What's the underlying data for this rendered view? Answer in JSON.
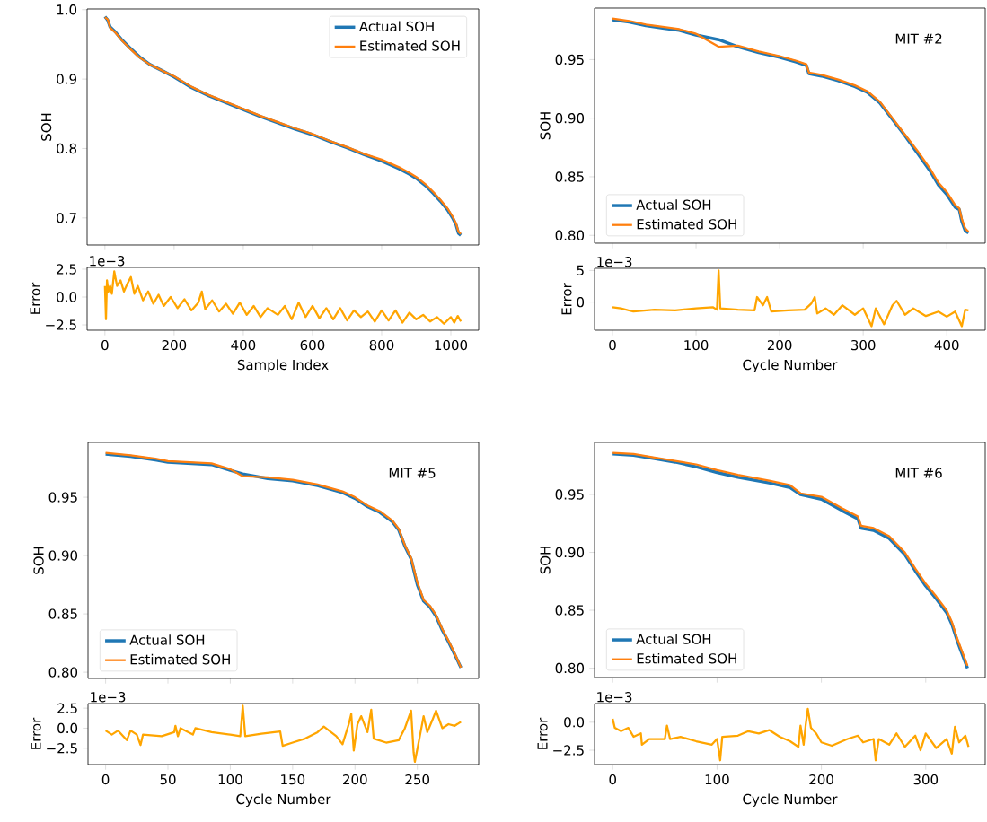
{
  "chart_data": [
    {
      "type": "line",
      "ylabel": "SOH",
      "xlim": [
        -51.5,
        1080.5
      ],
      "ylim": [
        0.661,
        1.001
      ],
      "xticks": [
        0,
        200,
        400,
        600,
        800,
        1000
      ],
      "yticks": [
        {
          "value": 0.7,
          "label": "0.7"
        },
        {
          "value": 0.8,
          "label": "0.8"
        },
        {
          "value": 0.9,
          "label": "0.9"
        },
        {
          "value": 1.0,
          "label": "1.0"
        }
      ],
      "tick_labels": "y",
      "legend": "top right",
      "x": [
        0,
        8,
        15,
        30,
        50,
        70,
        100,
        130,
        170,
        200,
        250,
        300,
        350,
        400,
        450,
        500,
        550,
        600,
        650,
        700,
        750,
        800,
        850,
        880,
        900,
        930,
        950,
        970,
        990,
        1005,
        1015,
        1022,
        1029
      ],
      "series": [
        {
          "name": "Actual SOH",
          "color": "#1f77b4",
          "values": [
            0.99,
            0.985,
            0.975,
            0.968,
            0.956,
            0.946,
            0.932,
            0.921,
            0.911,
            0.903,
            0.888,
            0.876,
            0.866,
            0.856,
            0.846,
            0.837,
            0.828,
            0.82,
            0.81,
            0.801,
            0.791,
            0.782,
            0.771,
            0.763,
            0.757,
            0.745,
            0.735,
            0.724,
            0.712,
            0.7,
            0.69,
            0.678,
            0.675
          ]
        },
        {
          "name": "Estimated SOH",
          "color": "#ff7f0e",
          "values": [
            0.989,
            0.986,
            0.974,
            0.967,
            0.955,
            0.945,
            0.931,
            0.921,
            0.911,
            0.904,
            0.889,
            0.877,
            0.867,
            0.857,
            0.847,
            0.838,
            0.829,
            0.821,
            0.811,
            0.802,
            0.792,
            0.784,
            0.773,
            0.765,
            0.759,
            0.747,
            0.737,
            0.726,
            0.714,
            0.702,
            0.692,
            0.68,
            0.677
          ]
        }
      ]
    },
    {
      "type": "line",
      "xlabel": "Sample Index",
      "ylabel": "Error",
      "annotations": [
        "1e−3"
      ],
      "xlim": [
        -51.5,
        1080.5
      ],
      "ylim": [
        -2.98,
        2.66
      ],
      "xticks": [
        0,
        200,
        400,
        600,
        800,
        1000
      ],
      "yticks": [
        {
          "value": -2.5,
          "label": "−2.5"
        },
        {
          "value": 0.0,
          "label": "0.0"
        },
        {
          "value": 2.5,
          "label": "2.5"
        }
      ],
      "x": [
        0,
        3,
        6,
        10,
        15,
        20,
        27,
        35,
        45,
        55,
        65,
        75,
        85,
        95,
        110,
        125,
        140,
        155,
        170,
        190,
        210,
        230,
        250,
        270,
        280,
        290,
        310,
        330,
        350,
        370,
        390,
        410,
        430,
        450,
        470,
        500,
        520,
        540,
        560,
        580,
        600,
        620,
        640,
        660,
        680,
        700,
        720,
        740,
        760,
        780,
        800,
        820,
        840,
        860,
        880,
        900,
        920,
        940,
        960,
        980,
        1000,
        1010,
        1020,
        1029
      ],
      "series": [
        {
          "color": "#ffa500",
          "values": [
            1.0,
            -2.0,
            1.5,
            0.5,
            1.0,
            0.3,
            2.3,
            1.0,
            1.5,
            0.5,
            1.2,
            1.8,
            0.3,
            1.0,
            -0.3,
            0.5,
            -0.6,
            0.2,
            -0.8,
            0.0,
            -1.0,
            -0.2,
            -1.2,
            -0.5,
            0.5,
            -1.1,
            -0.3,
            -1.3,
            -0.6,
            -1.5,
            -0.5,
            -1.6,
            -0.8,
            -1.8,
            -1.0,
            -1.6,
            -0.8,
            -2.0,
            -0.5,
            -1.8,
            -0.8,
            -1.9,
            -1.0,
            -2.0,
            -1.0,
            -2.1,
            -1.2,
            -1.8,
            -1.3,
            -2.2,
            -1.2,
            -2.1,
            -1.2,
            -2.3,
            -1.4,
            -2.0,
            -1.6,
            -2.2,
            -1.8,
            -2.4,
            -1.8,
            -2.3,
            -1.7,
            -2.2
          ]
        }
      ]
    },
    {
      "type": "line",
      "ylabel": "SOH",
      "annotations": [
        "MIT #2"
      ],
      "xlim": [
        -21.5,
        446
      ],
      "ylim": [
        0.7933,
        0.994
      ],
      "xticks": [
        0,
        100,
        200,
        300,
        400
      ],
      "yticks": [
        {
          "value": 0.8,
          "label": "0.80"
        },
        {
          "value": 0.85,
          "label": "0.85"
        },
        {
          "value": 0.9,
          "label": "0.90"
        },
        {
          "value": 0.95,
          "label": "0.95"
        }
      ],
      "tick_labels": "y",
      "legend": "bottom left",
      "x": [
        0,
        20,
        40,
        60,
        80,
        100,
        127,
        150,
        175,
        200,
        220,
        232,
        235,
        250,
        270,
        290,
        305,
        320,
        335,
        350,
        365,
        380,
        390,
        400,
        410,
        415,
        418,
        422,
        426
      ],
      "series": [
        {
          "name": "Actual SOH",
          "color": "#1f77b4",
          "values": [
            0.984,
            0.982,
            0.979,
            0.977,
            0.975,
            0.971,
            0.967,
            0.961,
            0.956,
            0.952,
            0.948,
            0.945,
            0.938,
            0.936,
            0.932,
            0.927,
            0.922,
            0.913,
            0.899,
            0.885,
            0.87,
            0.855,
            0.843,
            0.835,
            0.824,
            0.822,
            0.812,
            0.804,
            0.802
          ]
        },
        {
          "name": "Estimated SOH",
          "color": "#ff7f0e",
          "values": [
            0.985,
            0.983,
            0.98,
            0.978,
            0.976,
            0.972,
            0.961,
            0.962,
            0.957,
            0.953,
            0.949,
            0.946,
            0.939,
            0.937,
            0.933,
            0.928,
            0.923,
            0.914,
            0.9,
            0.886,
            0.872,
            0.857,
            0.845,
            0.837,
            0.826,
            0.823,
            0.814,
            0.806,
            0.803
          ]
        }
      ]
    },
    {
      "type": "line",
      "xlabel": "Cycle Number",
      "ylabel": "Error",
      "annotations": [
        "1e−3"
      ],
      "xlim": [
        -21.5,
        446
      ],
      "ylim": [
        -4.44,
        5.34
      ],
      "xticks": [
        0,
        100,
        200,
        300,
        400
      ],
      "yticks": [
        0,
        5
      ],
      "x": [
        0,
        10,
        25,
        50,
        75,
        100,
        120,
        125,
        127,
        129,
        150,
        170,
        173,
        180,
        185,
        190,
        210,
        230,
        238,
        242,
        245,
        255,
        265,
        275,
        290,
        300,
        310,
        315,
        325,
        335,
        340,
        350,
        360,
        375,
        390,
        400,
        410,
        418,
        422,
        426
      ],
      "series": [
        {
          "color": "#ffa500",
          "values": [
            -0.8,
            -1.0,
            -1.5,
            -1.2,
            -1.3,
            -1.0,
            -0.8,
            -1.2,
            5.0,
            -1.0,
            -1.2,
            -1.3,
            0.8,
            -0.5,
            0.8,
            -1.5,
            -1.3,
            -1.2,
            -0.2,
            0.8,
            -1.8,
            -1.0,
            -2.0,
            -0.5,
            -2.0,
            -1.0,
            -3.8,
            -1.0,
            -3.5,
            -0.5,
            0.2,
            -2.0,
            -1.0,
            -2.2,
            -1.5,
            -2.3,
            -1.5,
            -3.8,
            -1.2,
            -1.3
          ]
        }
      ]
    },
    {
      "type": "line",
      "ylabel": "SOH",
      "annotations": [
        "MIT #5"
      ],
      "xlim": [
        -14.1,
        299.2
      ],
      "ylim": [
        0.7947,
        0.997
      ],
      "xticks": [
        0,
        50,
        100,
        150,
        200,
        250
      ],
      "yticks": [
        {
          "value": 0.8,
          "label": "0.80"
        },
        {
          "value": 0.85,
          "label": "0.85"
        },
        {
          "value": 0.9,
          "label": "0.90"
        },
        {
          "value": 0.95,
          "label": "0.95"
        }
      ],
      "tick_labels": "y",
      "legend": "bottom left",
      "x": [
        0,
        20,
        40,
        50,
        85,
        100,
        110,
        130,
        150,
        170,
        190,
        200,
        210,
        220,
        230,
        235,
        240,
        245,
        250,
        255,
        260,
        265,
        270,
        275,
        280,
        285
      ],
      "series": [
        {
          "name": "Actual SOH",
          "color": "#1f77b4",
          "values": [
            0.987,
            0.985,
            0.982,
            0.98,
            0.978,
            0.973,
            0.97,
            0.966,
            0.964,
            0.96,
            0.954,
            0.949,
            0.942,
            0.937,
            0.929,
            0.922,
            0.908,
            0.897,
            0.875,
            0.861,
            0.856,
            0.848,
            0.836,
            0.826,
            0.815,
            0.804
          ]
        },
        {
          "name": "Estimated SOH",
          "color": "#ff7f0e",
          "values": [
            0.988,
            0.986,
            0.983,
            0.981,
            0.979,
            0.974,
            0.968,
            0.967,
            0.965,
            0.961,
            0.955,
            0.95,
            0.943,
            0.938,
            0.93,
            0.923,
            0.909,
            0.898,
            0.877,
            0.862,
            0.857,
            0.849,
            0.837,
            0.827,
            0.816,
            0.804
          ]
        }
      ]
    },
    {
      "type": "line",
      "xlabel": "Cycle Number",
      "ylabel": "Error",
      "annotations": [
        "1e−3"
      ],
      "xlim": [
        -14.1,
        299.2
      ],
      "ylim": [
        -4.54,
        3.08
      ],
      "xticks": [
        0,
        50,
        100,
        150,
        200,
        250
      ],
      "yticks": [
        {
          "value": -2.5,
          "label": "−2.5"
        },
        {
          "value": 0.0,
          "label": "0.0"
        },
        {
          "value": 2.5,
          "label": "2.5"
        }
      ],
      "x": [
        0,
        5,
        10,
        17,
        20,
        25,
        28,
        30,
        45,
        55,
        56,
        58,
        60,
        70,
        72,
        85,
        100,
        108,
        110,
        112,
        125,
        140,
        142,
        150,
        160,
        170,
        175,
        185,
        190,
        195,
        197,
        199,
        202,
        205,
        210,
        213,
        215,
        225,
        235,
        240,
        245,
        247,
        248,
        252,
        255,
        258,
        262,
        265,
        270,
        275,
        280,
        285
      ],
      "series": [
        {
          "color": "#ffa500",
          "values": [
            -0.3,
            -0.8,
            -0.3,
            -1.5,
            -0.3,
            -0.8,
            -2.1,
            -0.8,
            -1.0,
            -0.5,
            0.3,
            -1.0,
            0.0,
            -0.8,
            0.0,
            -0.5,
            -0.8,
            -1.0,
            2.8,
            -1.0,
            -0.7,
            -0.4,
            -2.2,
            -1.8,
            -1.3,
            -0.5,
            0.2,
            -1.0,
            -2.0,
            0.5,
            1.8,
            -2.8,
            0.5,
            1.5,
            -0.5,
            2.3,
            -1.3,
            -1.8,
            -1.5,
            0.0,
            2.2,
            -3.0,
            -4.2,
            -1.0,
            1.5,
            -0.5,
            1.0,
            2.2,
            0.0,
            0.5,
            0.3,
            0.8
          ]
        }
      ]
    },
    {
      "type": "line",
      "ylabel": "SOH",
      "annotations": [
        "MIT #6"
      ],
      "xlim": [
        -17.4,
        357
      ],
      "ylim": [
        0.7919,
        0.995
      ],
      "xticks": [
        0,
        100,
        200,
        300
      ],
      "yticks": [
        {
          "value": 0.8,
          "label": "0.80"
        },
        {
          "value": 0.85,
          "label": "0.85"
        },
        {
          "value": 0.9,
          "label": "0.90"
        },
        {
          "value": 0.95,
          "label": "0.95"
        }
      ],
      "tick_labels": "y",
      "legend": "bottom left",
      "x": [
        0,
        20,
        40,
        60,
        80,
        100,
        120,
        150,
        170,
        180,
        200,
        220,
        235,
        238,
        250,
        265,
        280,
        290,
        300,
        310,
        320,
        325,
        330,
        335,
        340
      ],
      "series": [
        {
          "name": "Actual SOH",
          "color": "#1f77b4",
          "values": [
            0.985,
            0.984,
            0.981,
            0.978,
            0.974,
            0.969,
            0.965,
            0.96,
            0.956,
            0.95,
            0.946,
            0.936,
            0.929,
            0.921,
            0.919,
            0.912,
            0.898,
            0.884,
            0.871,
            0.86,
            0.848,
            0.838,
            0.824,
            0.812,
            0.8
          ]
        },
        {
          "name": "Estimated SOH",
          "color": "#ff7f0e",
          "values": [
            0.986,
            0.985,
            0.982,
            0.979,
            0.976,
            0.971,
            0.967,
            0.962,
            0.958,
            0.951,
            0.948,
            0.938,
            0.931,
            0.923,
            0.921,
            0.914,
            0.9,
            0.886,
            0.873,
            0.862,
            0.85,
            0.84,
            0.826,
            0.814,
            0.802
          ]
        }
      ]
    },
    {
      "type": "line",
      "xlabel": "Cycle Number",
      "ylabel": "Error",
      "annotations": [
        "1e−3"
      ],
      "xlim": [
        -17.4,
        357
      ],
      "ylim": [
        -3.78,
        1.67
      ],
      "xticks": [
        0,
        100,
        200,
        300
      ],
      "yticks": [
        {
          "value": -2.5,
          "label": "−2.5"
        },
        {
          "value": 0.0,
          "label": "0.0"
        }
      ],
      "x": [
        0,
        2,
        8,
        15,
        20,
        27,
        28,
        35,
        50,
        52,
        55,
        65,
        80,
        95,
        100,
        103,
        105,
        120,
        130,
        140,
        150,
        160,
        170,
        178,
        180,
        183,
        185,
        187,
        190,
        195,
        200,
        210,
        225,
        235,
        240,
        250,
        252,
        255,
        265,
        272,
        280,
        290,
        295,
        300,
        310,
        320,
        325,
        328,
        332,
        338,
        341
      ],
      "series": [
        {
          "color": "#ffa500",
          "values": [
            0.3,
            -0.5,
            -0.8,
            -0.5,
            -1.3,
            -1.0,
            -2.0,
            -1.5,
            -1.5,
            -0.3,
            -1.5,
            -1.3,
            -1.7,
            -2.0,
            -1.5,
            -3.4,
            -1.3,
            -1.2,
            -0.8,
            -1.0,
            -0.7,
            -1.3,
            -1.7,
            -2.2,
            -0.3,
            -2.0,
            -0.2,
            1.2,
            -0.5,
            -1.0,
            -1.8,
            -2.1,
            -1.5,
            -1.2,
            -1.8,
            -1.5,
            -3.4,
            -1.5,
            -2.0,
            -1.0,
            -2.2,
            -1.2,
            -2.5,
            -1.0,
            -2.3,
            -1.5,
            -2.8,
            -0.4,
            -1.8,
            -1.2,
            -2.2
          ]
        }
      ]
    }
  ]
}
